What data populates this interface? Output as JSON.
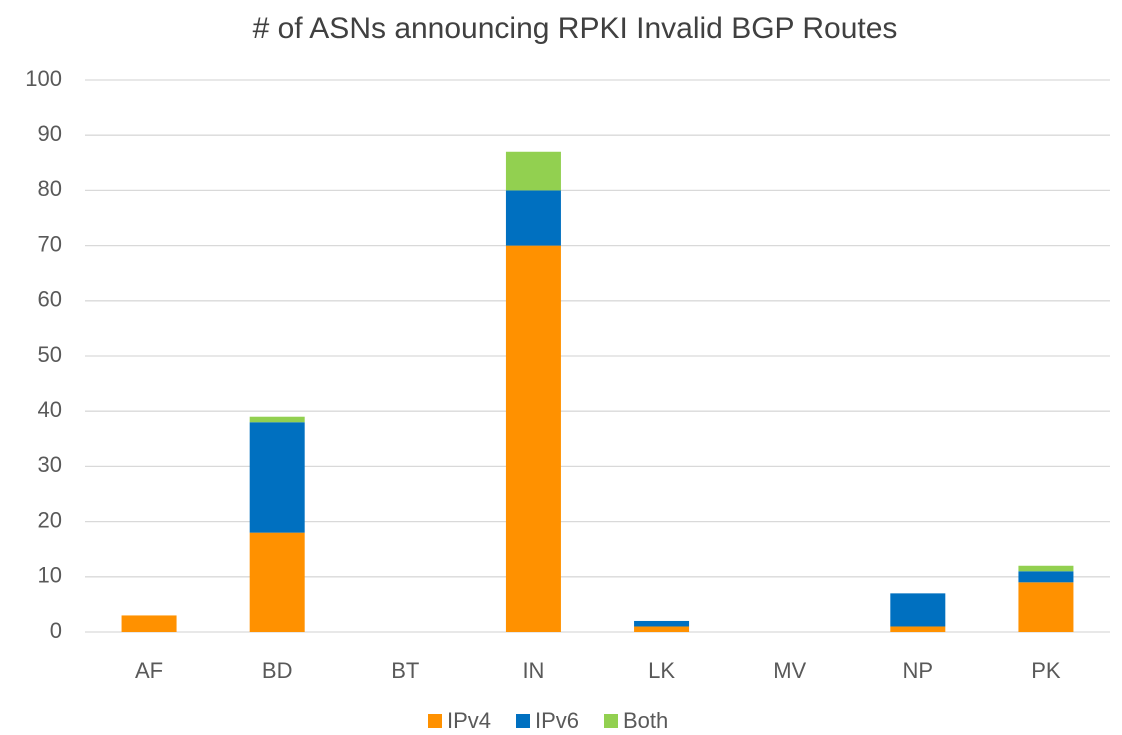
{
  "chart_data": {
    "type": "stacked_bar",
    "title": "# of ASNs announcing RPKI Invalid BGP Routes",
    "categories": [
      "AF",
      "BD",
      "BT",
      "IN",
      "LK",
      "MV",
      "NP",
      "PK"
    ],
    "series": [
      {
        "name": "IPv4",
        "color": "#ff9100",
        "values": [
          3,
          18,
          0,
          70,
          1,
          0,
          1,
          9
        ]
      },
      {
        "name": "IPv6",
        "color": "#0070c0",
        "values": [
          0,
          20,
          0,
          10,
          1,
          0,
          6,
          2
        ]
      },
      {
        "name": "Both",
        "color": "#92d050",
        "values": [
          0,
          1,
          0,
          7,
          0,
          0,
          0,
          1
        ]
      }
    ],
    "ylim": [
      0,
      100
    ],
    "yticks": [
      0,
      10,
      20,
      30,
      40,
      50,
      60,
      70,
      80,
      90,
      100
    ],
    "grid": true,
    "legend": "bottom"
  }
}
